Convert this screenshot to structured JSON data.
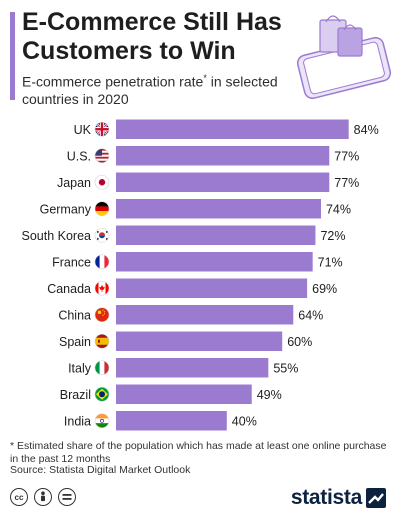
{
  "header": {
    "title": "E-Commerce Still Has Customers to Win",
    "subtitle_main": "E-commerce penetration rate",
    "subtitle_marker": "*",
    "subtitle_rest": " in selected countries in 2020"
  },
  "chart_data": {
    "type": "bar",
    "orientation": "horizontal",
    "categories": [
      "UK",
      "U.S.",
      "Japan",
      "Germany",
      "South Korea",
      "France",
      "Canada",
      "China",
      "Spain",
      "Italy",
      "Brazil",
      "India"
    ],
    "values": [
      84,
      77,
      77,
      74,
      72,
      71,
      69,
      64,
      60,
      55,
      49,
      40
    ],
    "value_labels": [
      "84%",
      "77%",
      "77%",
      "74%",
      "72%",
      "71%",
      "69%",
      "64%",
      "60%",
      "55%",
      "49%",
      "40%"
    ],
    "flags": [
      "uk-flag-icon",
      "us-flag-icon",
      "japan-flag-icon",
      "germany-flag-icon",
      "south-korea-flag-icon",
      "france-flag-icon",
      "canada-flag-icon",
      "china-flag-icon",
      "spain-flag-icon",
      "italy-flag-icon",
      "brazil-flag-icon",
      "india-flag-icon"
    ],
    "xlim": [
      0,
      100
    ],
    "grid": false,
    "bar_color": "#9b7bd0"
  },
  "footnote": "* Estimated share of the population which has made at least one online purchase in the past 12 months",
  "source": "Source: Statista Digital Market Outlook",
  "brand": "statista",
  "colors": {
    "accent": "#9b7bd0",
    "brand": "#0c2340"
  }
}
